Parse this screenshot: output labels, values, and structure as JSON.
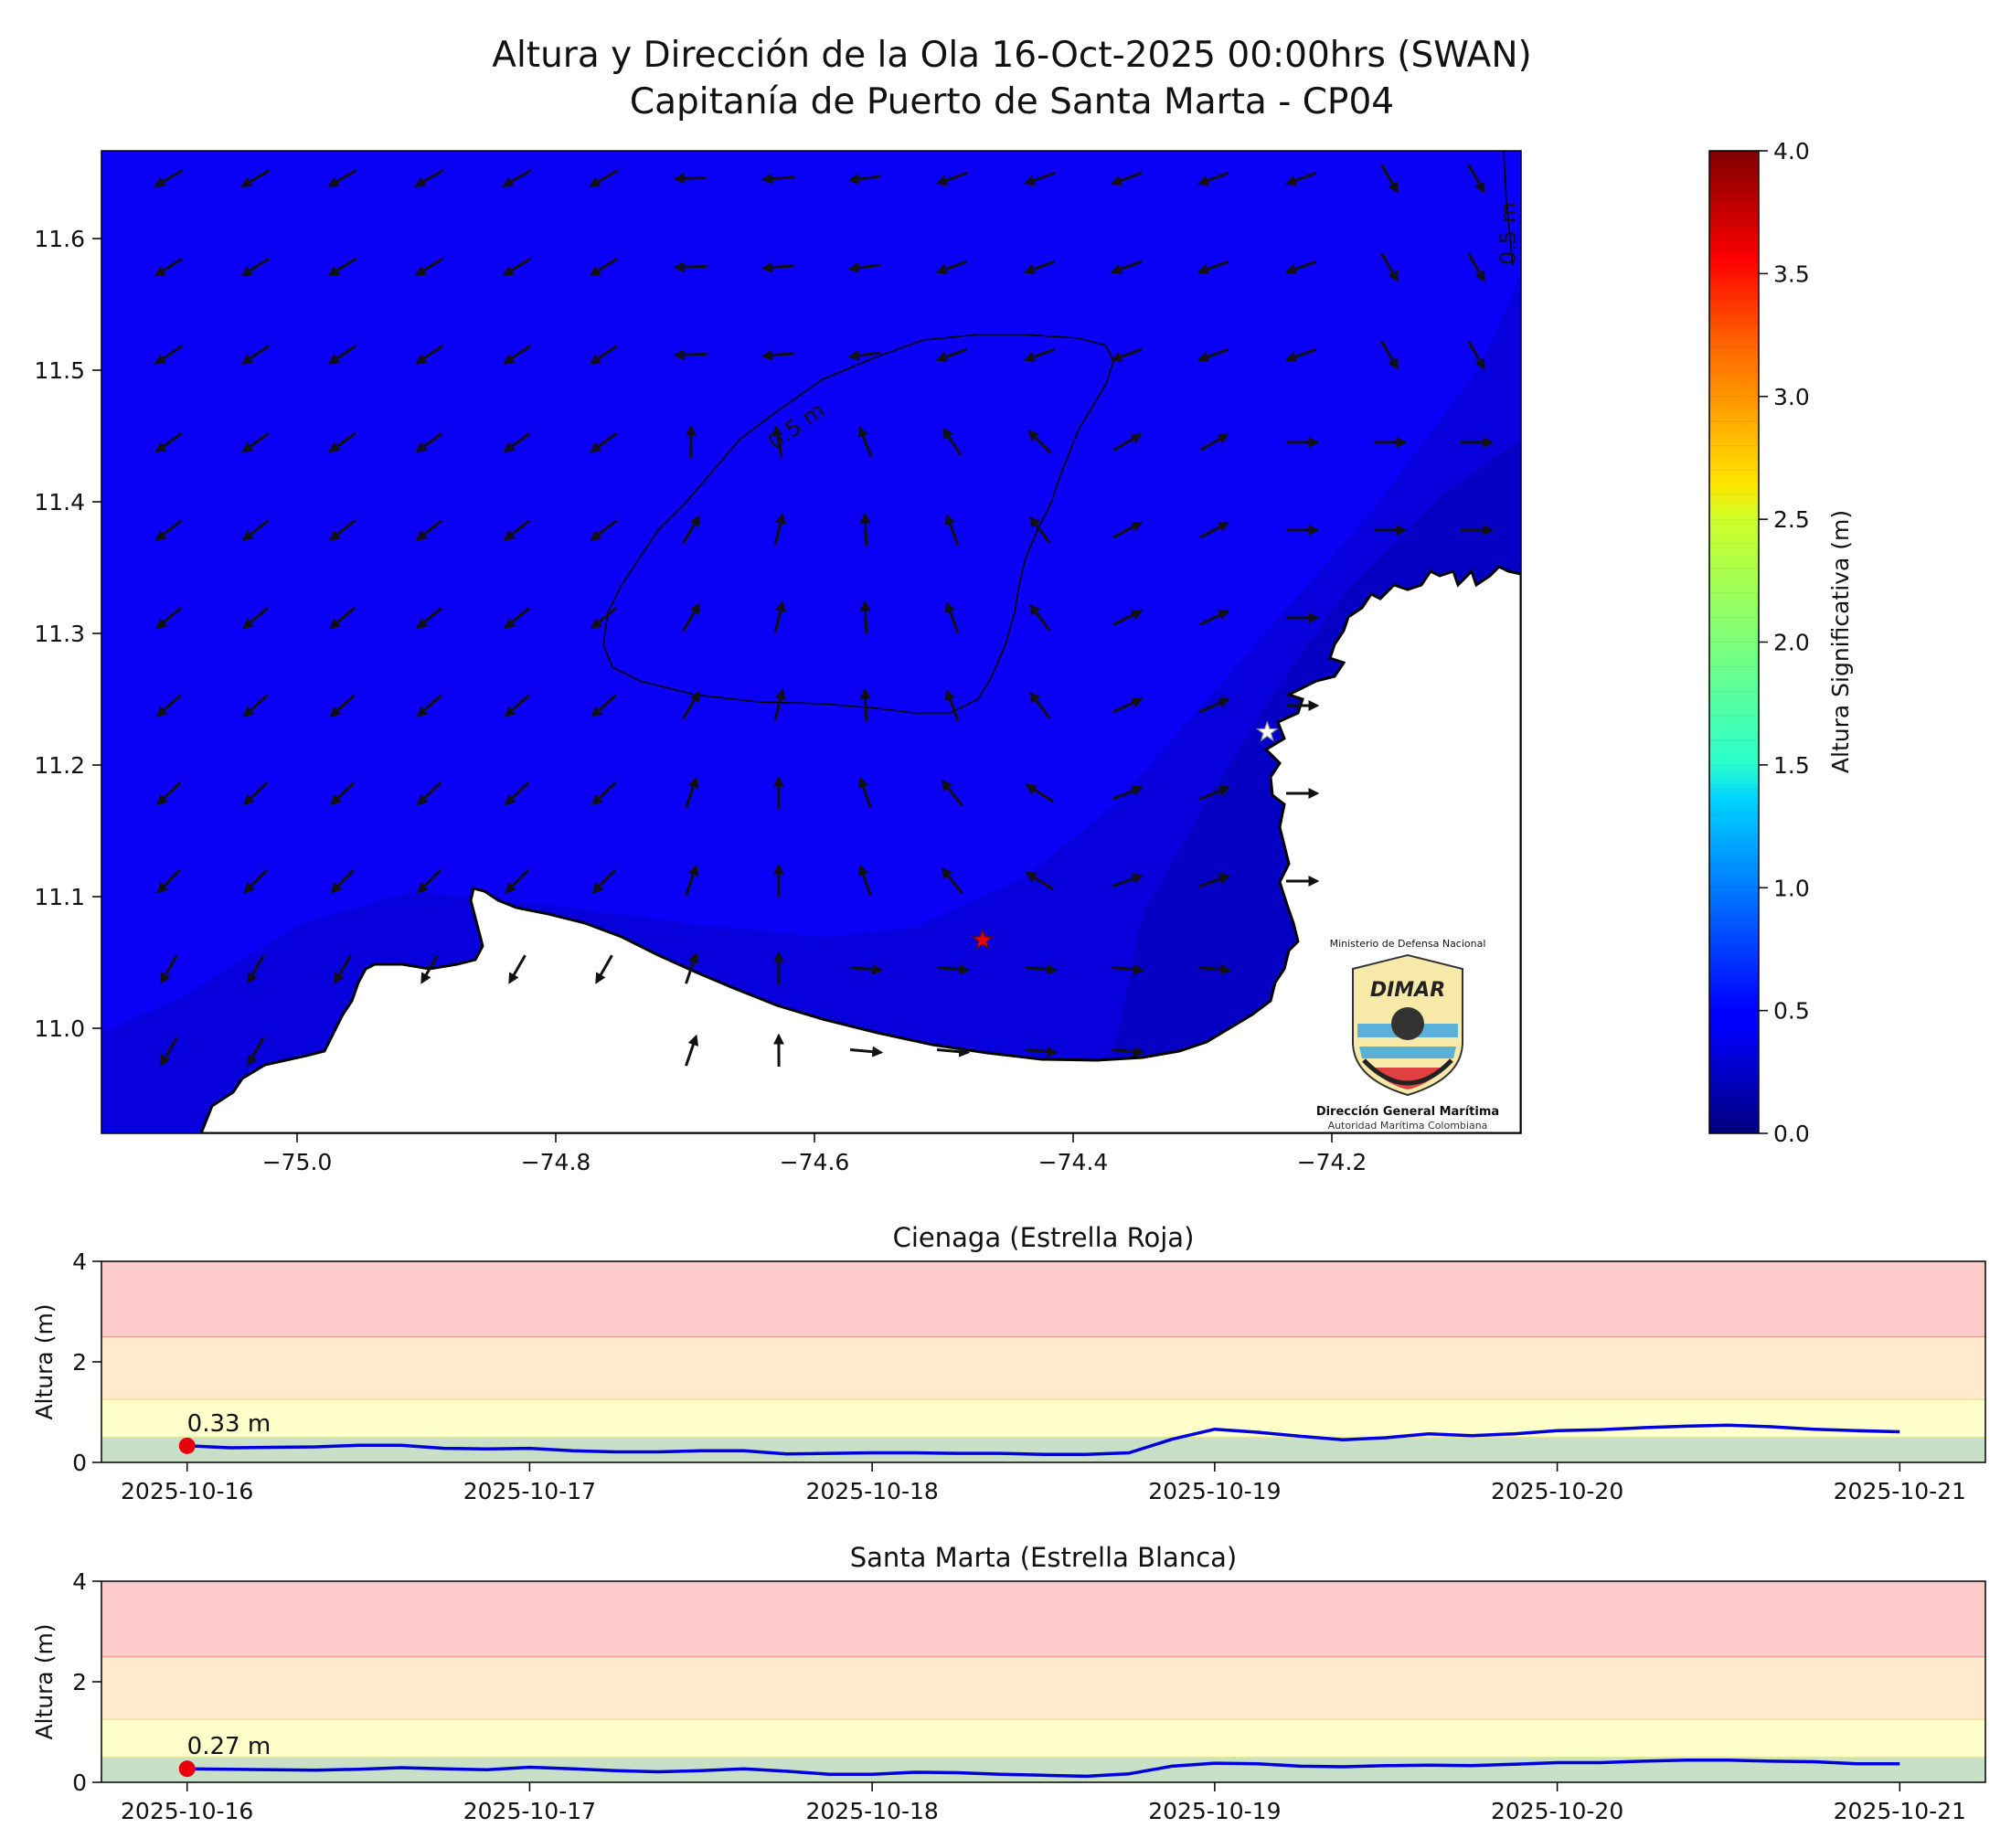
{
  "title_line1": "Altura y Dirección de la Ola 16-Oct-2025 00:00hrs (SWAN)",
  "title_line2": "Capitanía de Puerto de Santa Marta - CP04",
  "map": {
    "x_ticks": [
      "−75.0",
      "−74.8",
      "−74.6",
      "−74.4",
      "−74.2"
    ],
    "y_ticks": [
      "11.0",
      "11.1",
      "11.2",
      "11.3",
      "11.4",
      "11.5",
      "11.6"
    ],
    "contour_label_1": "0.5 m",
    "contour_label_2": "0.5 m",
    "sea_color": "#0a00f5",
    "markers": [
      {
        "name": "Cienaga",
        "lon": -74.47,
        "lat": 11.067,
        "color": "#e8000b"
      },
      {
        "name": "Santa Marta",
        "lon": -74.25,
        "lat": 11.225,
        "color": "#ffffff"
      }
    ]
  },
  "logo": {
    "top_text": "Ministerio de Defensa Nacional",
    "brand": "DIMAR",
    "name": "Dirección General Marítima",
    "subtitle": "Autoridad Marítima Colombiana"
  },
  "colorbar": {
    "label": "Altura Significativa (m)",
    "ticks": [
      "0.0",
      "0.5",
      "1.0",
      "1.5",
      "2.0",
      "2.5",
      "3.0",
      "3.5",
      "4.0"
    ],
    "range": [
      0,
      4
    ],
    "colormap": "jet"
  },
  "chart_data": [
    {
      "type": "line",
      "title": "Cienaga (Estrella Roja)",
      "ylabel": "Altura (m)",
      "ylim": [
        0,
        4
      ],
      "yticks": [
        "0",
        "2",
        "4"
      ],
      "xticks": [
        "2025-10-16",
        "2025-10-17",
        "2025-10-18",
        "2025-10-19",
        "2025-10-20",
        "2025-10-21"
      ],
      "xlim_days": [
        -0.25,
        5.25
      ],
      "bands": [
        {
          "from": 0,
          "to": 0.5,
          "color": "#c8e0c8"
        },
        {
          "from": 0.5,
          "to": 1.25,
          "color": "#ffffcc"
        },
        {
          "from": 1.25,
          "to": 2.5,
          "color": "#ffebcc"
        },
        {
          "from": 2.5,
          "to": 4,
          "color": "#ffcccc"
        }
      ],
      "current_label": "0.33 m",
      "current_value": 0.33,
      "series": [
        {
          "values": [
            [
              "2025-10-16 00:00",
              0.33
            ],
            [
              "2025-10-16 03:00",
              0.29
            ],
            [
              "2025-10-16 06:00",
              0.3
            ],
            [
              "2025-10-16 09:00",
              0.31
            ],
            [
              "2025-10-16 12:00",
              0.34
            ],
            [
              "2025-10-16 15:00",
              0.34
            ],
            [
              "2025-10-16 18:00",
              0.28
            ],
            [
              "2025-10-16 21:00",
              0.27
            ],
            [
              "2025-10-17 00:00",
              0.28
            ],
            [
              "2025-10-17 03:00",
              0.23
            ],
            [
              "2025-10-17 06:00",
              0.21
            ],
            [
              "2025-10-17 09:00",
              0.21
            ],
            [
              "2025-10-17 12:00",
              0.23
            ],
            [
              "2025-10-17 15:00",
              0.23
            ],
            [
              "2025-10-17 18:00",
              0.17
            ],
            [
              "2025-10-17 21:00",
              0.18
            ],
            [
              "2025-10-18 00:00",
              0.19
            ],
            [
              "2025-10-18 03:00",
              0.19
            ],
            [
              "2025-10-18 06:00",
              0.18
            ],
            [
              "2025-10-18 09:00",
              0.18
            ],
            [
              "2025-10-18 12:00",
              0.16
            ],
            [
              "2025-10-18 15:00",
              0.16
            ],
            [
              "2025-10-18 18:00",
              0.19
            ],
            [
              "2025-10-18 21:00",
              0.46
            ],
            [
              "2025-10-19 00:00",
              0.66
            ],
            [
              "2025-10-19 03:00",
              0.6
            ],
            [
              "2025-10-19 06:00",
              0.52
            ],
            [
              "2025-10-19 09:00",
              0.45
            ],
            [
              "2025-10-19 12:00",
              0.49
            ],
            [
              "2025-10-19 15:00",
              0.57
            ],
            [
              "2025-10-19 18:00",
              0.53
            ],
            [
              "2025-10-19 21:00",
              0.57
            ],
            [
              "2025-10-20 00:00",
              0.63
            ],
            [
              "2025-10-20 03:00",
              0.65
            ],
            [
              "2025-10-20 06:00",
              0.69
            ],
            [
              "2025-10-20 09:00",
              0.72
            ],
            [
              "2025-10-20 12:00",
              0.74
            ],
            [
              "2025-10-20 15:00",
              0.71
            ],
            [
              "2025-10-20 18:00",
              0.66
            ],
            [
              "2025-10-20 21:00",
              0.63
            ],
            [
              "2025-10-21 00:00",
              0.61
            ]
          ],
          "color": "#0000dd"
        }
      ]
    },
    {
      "type": "line",
      "title": "Santa Marta (Estrella Blanca)",
      "ylabel": "Altura (m)",
      "ylim": [
        0,
        4
      ],
      "yticks": [
        "0",
        "2",
        "4"
      ],
      "xticks": [
        "2025-10-16",
        "2025-10-17",
        "2025-10-18",
        "2025-10-19",
        "2025-10-20",
        "2025-10-21"
      ],
      "xlim_days": [
        -0.25,
        5.25
      ],
      "bands": [
        {
          "from": 0,
          "to": 0.5,
          "color": "#c8e0c8"
        },
        {
          "from": 0.5,
          "to": 1.25,
          "color": "#ffffcc"
        },
        {
          "from": 1.25,
          "to": 2.5,
          "color": "#ffebcc"
        },
        {
          "from": 2.5,
          "to": 4,
          "color": "#ffcccc"
        }
      ],
      "current_label": "0.27 m",
      "current_value": 0.27,
      "series": [
        {
          "values": [
            [
              "2025-10-16 00:00",
              0.27
            ],
            [
              "2025-10-16 03:00",
              0.26
            ],
            [
              "2025-10-16 06:00",
              0.25
            ],
            [
              "2025-10-16 09:00",
              0.24
            ],
            [
              "2025-10-16 12:00",
              0.26
            ],
            [
              "2025-10-16 15:00",
              0.29
            ],
            [
              "2025-10-16 18:00",
              0.27
            ],
            [
              "2025-10-16 21:00",
              0.25
            ],
            [
              "2025-10-17 00:00",
              0.3
            ],
            [
              "2025-10-17 03:00",
              0.27
            ],
            [
              "2025-10-17 06:00",
              0.23
            ],
            [
              "2025-10-17 09:00",
              0.21
            ],
            [
              "2025-10-17 12:00",
              0.23
            ],
            [
              "2025-10-17 15:00",
              0.27
            ],
            [
              "2025-10-17 18:00",
              0.22
            ],
            [
              "2025-10-17 21:00",
              0.16
            ],
            [
              "2025-10-18 00:00",
              0.16
            ],
            [
              "2025-10-18 03:00",
              0.2
            ],
            [
              "2025-10-18 06:00",
              0.19
            ],
            [
              "2025-10-18 09:00",
              0.16
            ],
            [
              "2025-10-18 12:00",
              0.14
            ],
            [
              "2025-10-18 15:00",
              0.12
            ],
            [
              "2025-10-18 18:00",
              0.17
            ],
            [
              "2025-10-18 21:00",
              0.32
            ],
            [
              "2025-10-19 00:00",
              0.38
            ],
            [
              "2025-10-19 03:00",
              0.37
            ],
            [
              "2025-10-19 06:00",
              0.32
            ],
            [
              "2025-10-19 09:00",
              0.31
            ],
            [
              "2025-10-19 12:00",
              0.33
            ],
            [
              "2025-10-19 15:00",
              0.34
            ],
            [
              "2025-10-19 18:00",
              0.33
            ],
            [
              "2025-10-19 21:00",
              0.36
            ],
            [
              "2025-10-20 00:00",
              0.39
            ],
            [
              "2025-10-20 03:00",
              0.39
            ],
            [
              "2025-10-20 06:00",
              0.42
            ],
            [
              "2025-10-20 09:00",
              0.44
            ],
            [
              "2025-10-20 12:00",
              0.44
            ],
            [
              "2025-10-20 15:00",
              0.42
            ],
            [
              "2025-10-20 18:00",
              0.41
            ],
            [
              "2025-10-20 21:00",
              0.37
            ],
            [
              "2025-10-21 00:00",
              0.37
            ]
          ],
          "color": "#0000dd"
        }
      ]
    }
  ]
}
